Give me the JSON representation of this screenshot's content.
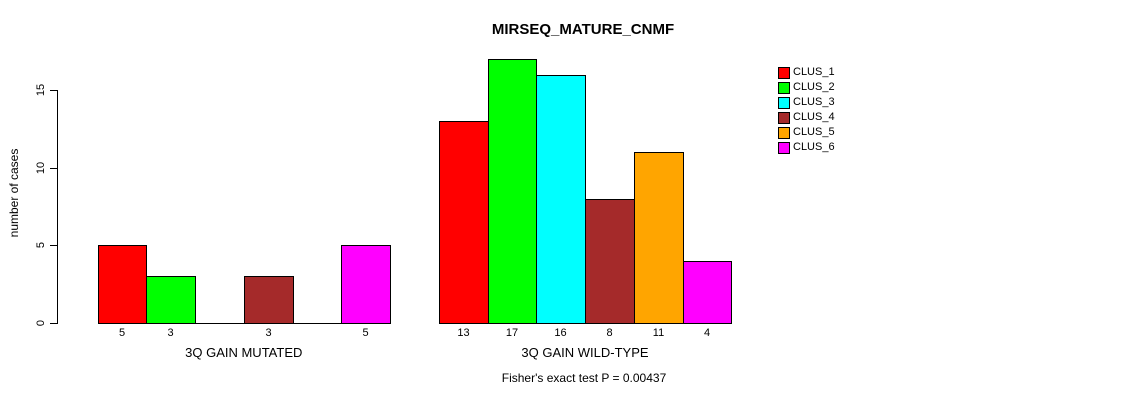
{
  "chart_data": {
    "type": "bar",
    "title": "MIRSEQ_MATURE_CNMF",
    "ylabel": "number of cases",
    "xlabel": "",
    "annotation": "Fisher's exact test P = 0.00437",
    "categories": [
      "3Q GAIN MUTATED",
      "3Q GAIN WILD-TYPE"
    ],
    "series": [
      {
        "name": "CLUS_1",
        "color": "#FF0000",
        "values": [
          5,
          13
        ]
      },
      {
        "name": "CLUS_2",
        "color": "#00FF00",
        "values": [
          3,
          17
        ]
      },
      {
        "name": "CLUS_3",
        "color": "#00FFFF",
        "values": [
          0,
          16
        ]
      },
      {
        "name": "CLUS_4",
        "color": "#A52A2A",
        "values": [
          3,
          8
        ]
      },
      {
        "name": "CLUS_5",
        "color": "#FFA500",
        "values": [
          0,
          11
        ]
      },
      {
        "name": "CLUS_6",
        "color": "#FF00FF",
        "values": [
          5,
          4
        ]
      }
    ],
    "yticks": [
      0,
      5,
      10,
      15
    ],
    "ylim": [
      0,
      17
    ],
    "grid": false,
    "legend_position": "right",
    "bar_value_labels": "shown below bars, zeros omitted"
  },
  "colors": {
    "background": "#FFFFFF",
    "axis": "#000000",
    "text": "#000000"
  }
}
